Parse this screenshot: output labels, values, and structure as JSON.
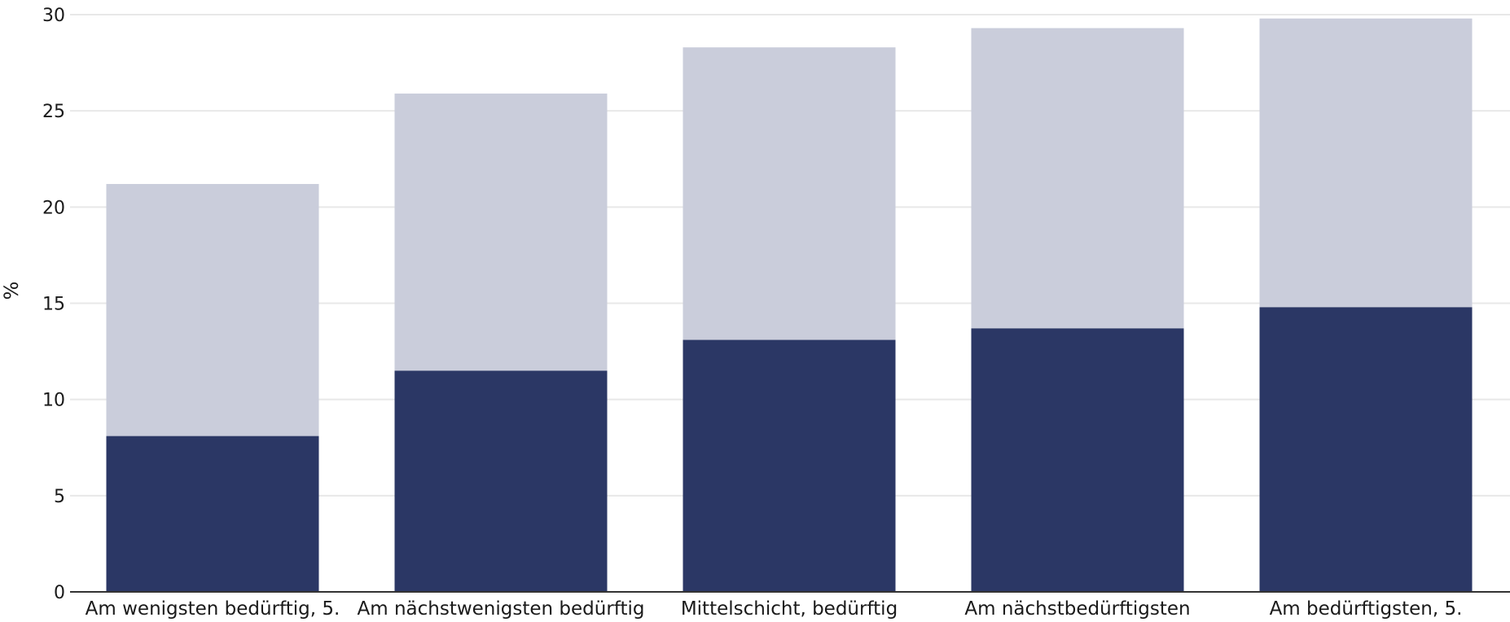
{
  "chart_data": {
    "type": "bar",
    "stacked": true,
    "title": "",
    "xlabel": "",
    "ylabel": "%",
    "ylim": [
      0,
      30
    ],
    "yticks": [
      0,
      5,
      10,
      15,
      20,
      25,
      30
    ],
    "grid": true,
    "categories": [
      "Am wenigsten bedürftig, 5.",
      "Am nächstwenigsten bedürftig",
      "Mittelschicht, bedürftig",
      "Am nächstbedürftigsten",
      "Am bedürftigsten, 5."
    ],
    "series": [
      {
        "values": [
          8.1,
          11.5,
          13.1,
          13.7,
          14.8
        ],
        "color": "#2b3765"
      },
      {
        "values": [
          13.1,
          14.4,
          15.2,
          15.6,
          15.0
        ],
        "color": "#cacddb"
      }
    ]
  },
  "colors": {
    "grid": "#e8e8e8",
    "axis": "#333333"
  }
}
